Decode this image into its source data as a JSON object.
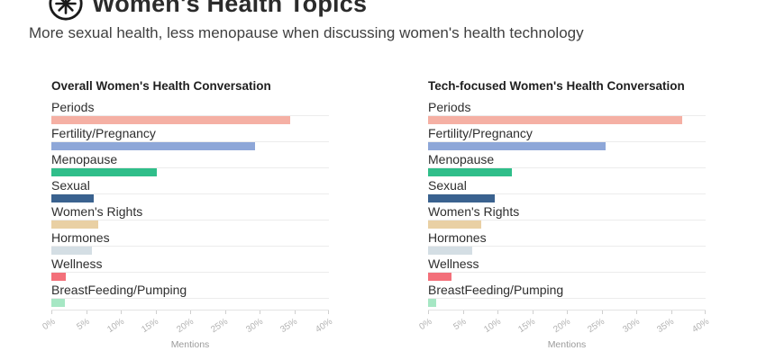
{
  "header": {
    "icon": "asterisk-flower-icon",
    "title": "Women's Health Topics",
    "subtitle": "More sexual health, less menopause when discussing women's health technology"
  },
  "chart_data": [
    {
      "type": "bar",
      "orientation": "horizontal",
      "title": "Overall Women's Health Conversation",
      "categories": [
        "Periods",
        "Fertility/Pregnancy",
        "Menopause",
        "Sexual",
        "Women's Rights",
        "Hormones",
        "Wellness",
        "BreastFeeding/Pumping"
      ],
      "values": [
        34.4,
        29.3,
        15.2,
        6.1,
        6.7,
        5.9,
        2.1,
        2.0
      ],
      "bar_colors": [
        "#f5b0a4",
        "#8ea7d8",
        "#30be8a",
        "#3a628f",
        "#e9d0a4",
        "#d4dee4",
        "#f3707a",
        "#a6e7c4"
      ],
      "xlabel": "Mentions",
      "xlim": [
        0,
        40
      ],
      "xticks": [
        "0%",
        "5%",
        "10%",
        "15%",
        "20%",
        "25%",
        "30%",
        "35%",
        "40%"
      ],
      "grid": false,
      "legend": false
    },
    {
      "type": "bar",
      "orientation": "horizontal",
      "title": "Tech-focused Women's Health Conversation",
      "categories": [
        "Periods",
        "Fertility/Pregnancy",
        "Menopause",
        "Sexual",
        "Women's Rights",
        "Hormones",
        "Wellness",
        "BreastFeeding/Pumping"
      ],
      "values": [
        36.6,
        25.6,
        12.1,
        9.6,
        7.7,
        6.3,
        3.4,
        1.2
      ],
      "bar_colors": [
        "#f5b0a4",
        "#8ea7d8",
        "#30be8a",
        "#3a628f",
        "#e9d0a4",
        "#d4dee4",
        "#f3707a",
        "#a6e7c4"
      ],
      "xlabel": "Mentions",
      "xlim": [
        0,
        40
      ],
      "xticks": [
        "0%",
        "5%",
        "10%",
        "15%",
        "20%",
        "25%",
        "30%",
        "35%",
        "40%"
      ],
      "grid": false,
      "legend": false
    }
  ]
}
